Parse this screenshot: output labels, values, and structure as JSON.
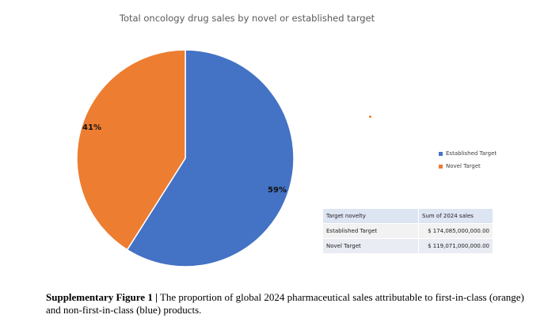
{
  "chart_data": {
    "type": "pie",
    "title": "Total oncology drug sales by novel or established target",
    "slices": [
      {
        "name": "Established Target",
        "value": 59,
        "label": "59%",
        "color": "#4472c4"
      },
      {
        "name": "Novel Target",
        "value": 41,
        "label": "41%",
        "color": "#ed7d31"
      }
    ],
    "legend": {
      "placement": "right",
      "items": [
        "Established Target",
        "Novel Target"
      ]
    }
  },
  "table": {
    "headers": [
      "Target novelty",
      "Sum of 2024 sales"
    ],
    "rows": [
      [
        "Established Target",
        "$ 174,085,000,000.00"
      ],
      [
        "Novel Target",
        "$ 119,071,000,000.00"
      ]
    ]
  },
  "caption": {
    "label": "Supplementary Figure 1 |",
    "text": " The proportion of global 2024 pharmaceutical sales attributable to first-in-class (orange) and non-first-in-class (blue) products."
  }
}
